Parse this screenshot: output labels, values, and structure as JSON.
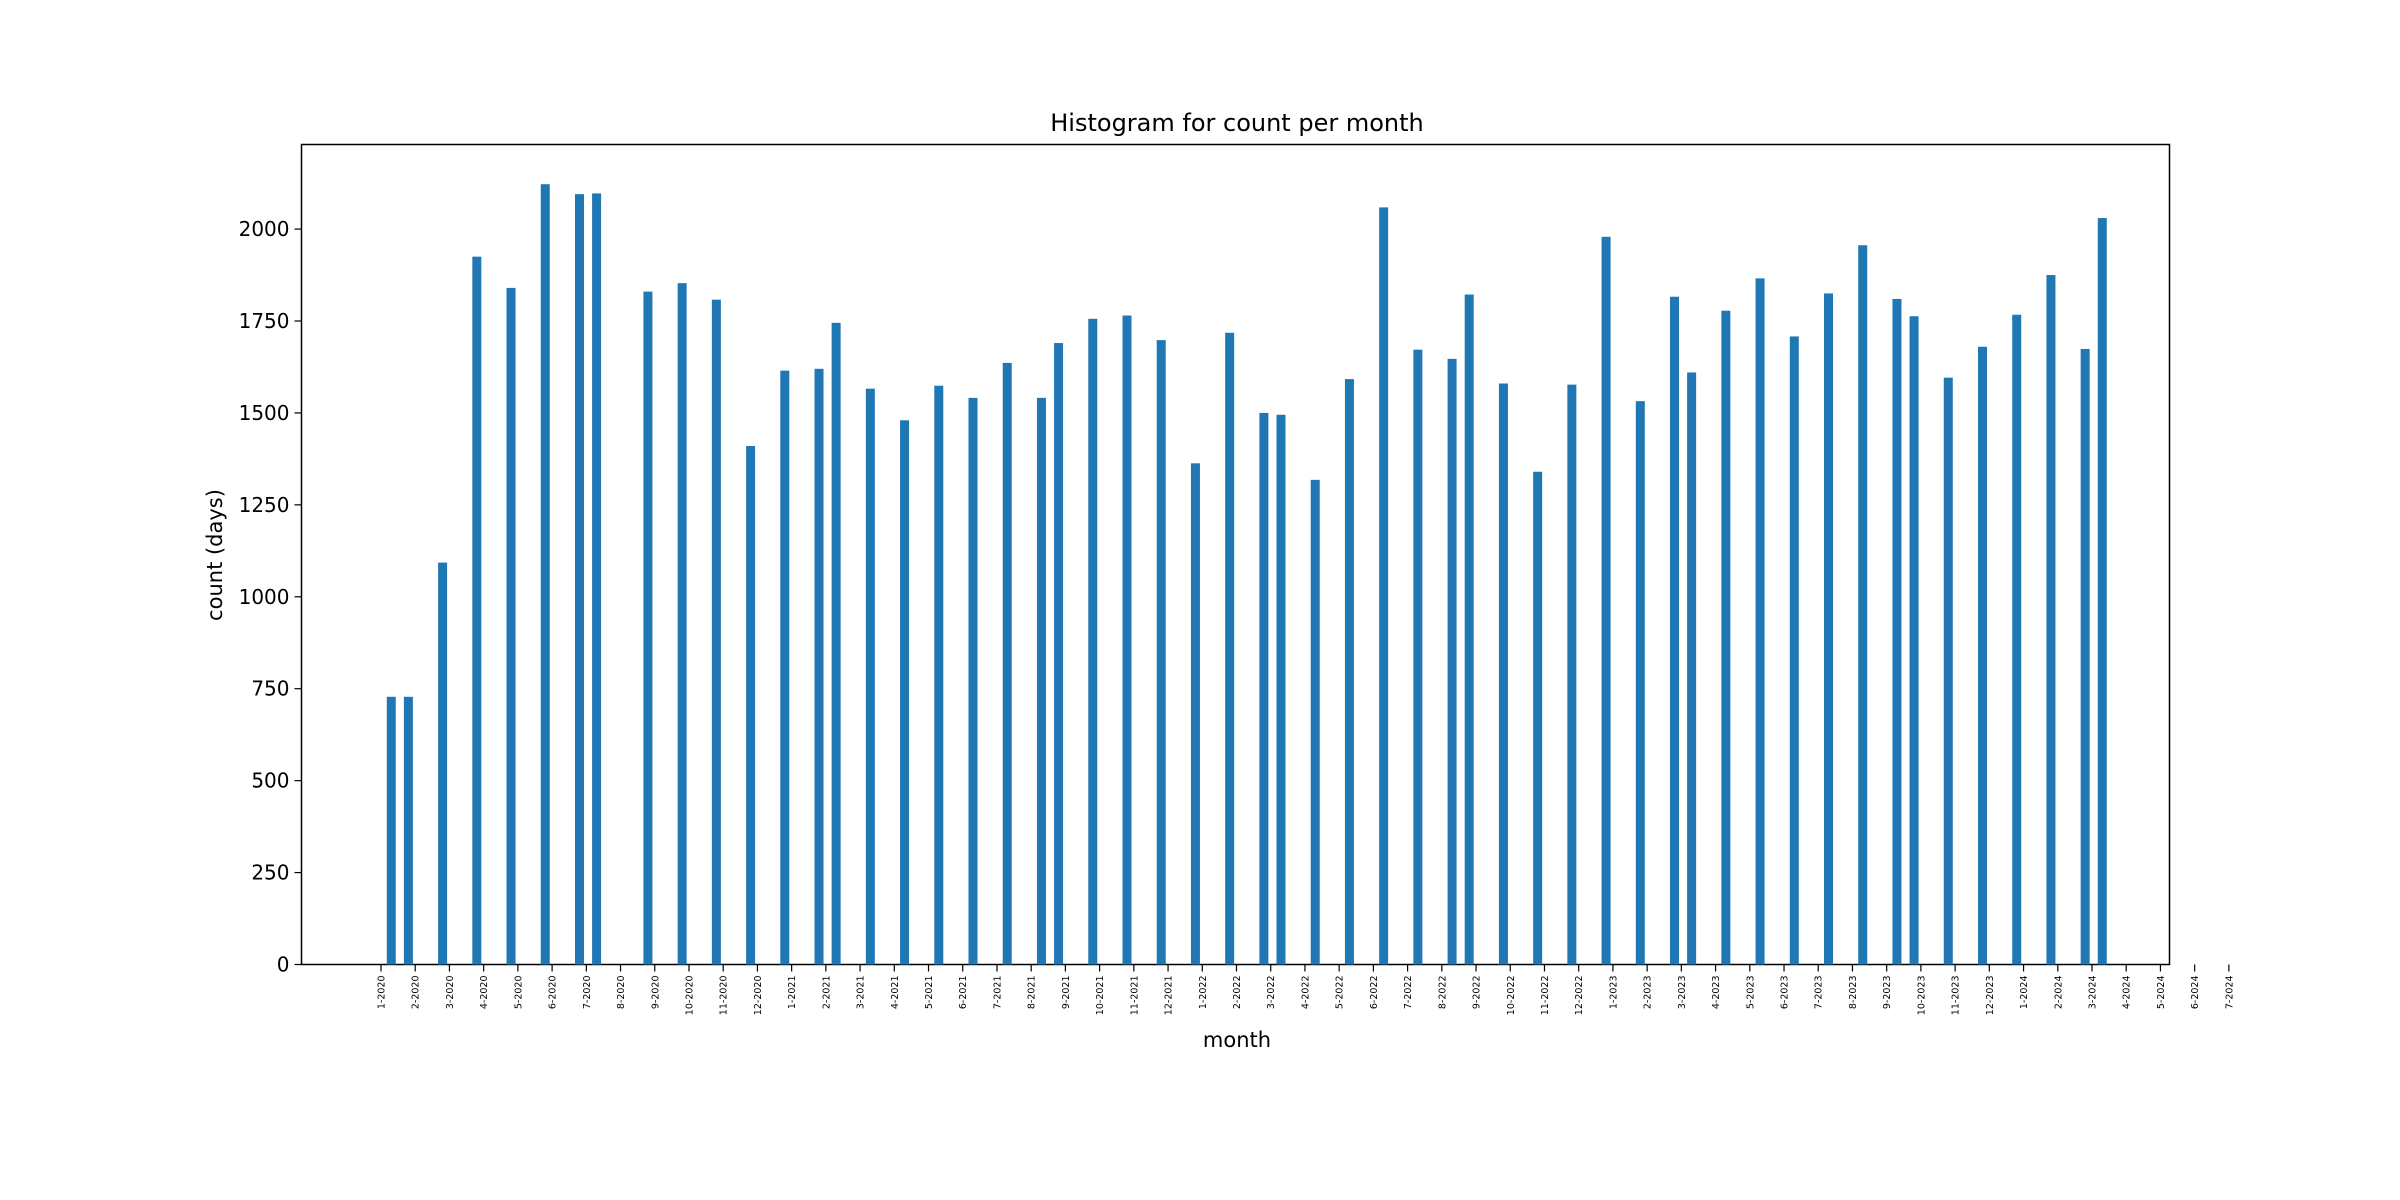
{
  "chart_data": {
    "type": "bar",
    "title": "Histogram for count per month",
    "xlabel": "month",
    "ylabel": "count (days)",
    "ylim": [
      0,
      2230
    ],
    "yticks": [
      0,
      250,
      500,
      750,
      1000,
      1250,
      1500,
      1750,
      2000
    ],
    "grid": false,
    "bar_color": "#1f77b4",
    "xtick_labels": [
      "1-2020",
      "2-2020",
      "3-2020",
      "4-2020",
      "5-2020",
      "6-2020",
      "7-2020",
      "8-2020",
      "9-2020",
      "10-2020",
      "11-2020",
      "12-2020",
      "1-2021",
      "2-2021",
      "3-2021",
      "4-2021",
      "5-2021",
      "6-2021",
      "7-2021",
      "8-2021",
      "9-2021",
      "10-2021",
      "11-2021",
      "12-2021",
      "1-2022",
      "2-2022",
      "3-2022",
      "4-2022",
      "5-2022",
      "6-2022",
      "7-2022",
      "8-2022",
      "9-2022",
      "10-2022",
      "11-2022",
      "12-2022",
      "1-2023",
      "2-2023",
      "3-2023",
      "4-2023",
      "5-2023",
      "6-2023",
      "7-2023",
      "8-2023",
      "9-2023",
      "10-2023",
      "11-2023",
      "12-2023",
      "1-2024",
      "2-2024",
      "3-2024",
      "4-2024",
      "5-2024",
      "6-2024",
      "7-2024"
    ],
    "xtick_positions": [
      0,
      1,
      2,
      3,
      4,
      5,
      6,
      7,
      8,
      9,
      10,
      11,
      12,
      13,
      14,
      15,
      16,
      17,
      18,
      19,
      20,
      21,
      22,
      23,
      24,
      25,
      26,
      27,
      28,
      29,
      30,
      31,
      32,
      33,
      34,
      35,
      36,
      37,
      38,
      39,
      40,
      41,
      42,
      43,
      44,
      45,
      46,
      47,
      48,
      49,
      50,
      51,
      52,
      53,
      54
    ],
    "bar_positions": [
      0.3,
      0.8,
      1.8,
      2.8,
      3.8,
      4.8,
      5.8,
      6.3,
      7.8,
      8.8,
      9.8,
      10.8,
      11.8,
      12.8,
      13.3,
      14.3,
      15.3,
      16.3,
      17.3,
      18.3,
      19.3,
      19.8,
      20.8,
      21.8,
      22.8,
      23.8,
      24.8,
      25.8,
      26.3,
      27.3,
      28.3,
      29.3,
      30.3,
      31.3,
      31.8,
      32.8,
      33.8,
      34.8,
      35.8,
      36.8,
      37.8,
      38.3,
      39.3,
      40.3,
      41.3,
      42.3,
      43.3,
      44.3,
      44.8,
      45.8,
      46.8,
      47.8,
      48.8,
      49.8,
      50.3
    ],
    "values": [
      728,
      728,
      1093,
      1925,
      1840,
      2122,
      2095,
      2097,
      1830,
      1853,
      1808,
      1410,
      1615,
      1620,
      1745,
      1566,
      1480,
      1574,
      1541,
      1636,
      1541,
      1690,
      1756,
      1765,
      1698,
      1363,
      1718,
      1500,
      1495,
      1318,
      1592,
      2059,
      1672,
      1647,
      1822,
      1580,
      1340,
      1577,
      1979,
      1532,
      1816,
      1610,
      1778,
      1866,
      1708,
      1825,
      1956,
      1810,
      1763,
      1596,
      1680,
      1767,
      1875,
      1674,
      2030
    ]
  }
}
